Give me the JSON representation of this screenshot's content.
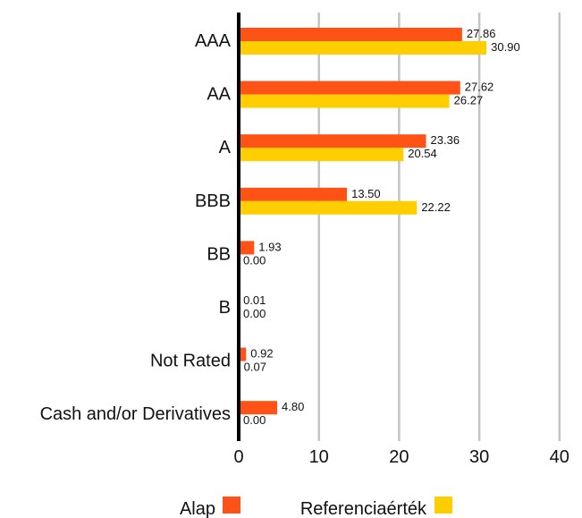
{
  "chart_data": {
    "type": "bar",
    "orientation": "horizontal",
    "categories": [
      "AAA",
      "AA",
      "A",
      "BBB",
      "BB",
      "B",
      "Not Rated",
      "Cash and/or Derivatives"
    ],
    "series": [
      {
        "name": "Alap",
        "color": "#ff5216",
        "values": [
          27.86,
          27.62,
          23.36,
          13.5,
          1.93,
          0.01,
          0.92,
          4.8
        ],
        "labels": [
          "27.86",
          "27.62",
          "23.36",
          "13.50",
          "1.93",
          "0.01",
          "0.92",
          "4.80"
        ]
      },
      {
        "name": "Referenciaérték",
        "color": "#ffce00",
        "values": [
          30.9,
          26.27,
          20.54,
          22.22,
          0.0,
          0.0,
          0.07,
          0.0
        ],
        "labels": [
          "30.90",
          "26.27",
          "20.54",
          "22.22",
          "0.00",
          "0.00",
          "0.07",
          "0.00"
        ]
      }
    ],
    "xlim": [
      0,
      40
    ],
    "x_ticks": [
      "0",
      "10",
      "20",
      "30",
      "40"
    ],
    "grid": "vertical",
    "legend": "bottom"
  }
}
